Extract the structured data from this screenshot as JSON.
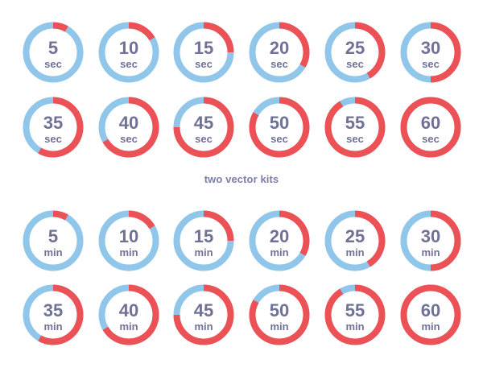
{
  "caption": "two vector kits",
  "colors": {
    "track": "#8fc6ea",
    "progress": "#ec5156",
    "face": "#ffffff",
    "text": "#6f7196"
  },
  "kits": [
    {
      "unit": "sec",
      "total": 60,
      "timers": [
        {
          "value": "5"
        },
        {
          "value": "10"
        },
        {
          "value": "15"
        },
        {
          "value": "20"
        },
        {
          "value": "25"
        },
        {
          "value": "30"
        },
        {
          "value": "35"
        },
        {
          "value": "40"
        },
        {
          "value": "45"
        },
        {
          "value": "50"
        },
        {
          "value": "55"
        },
        {
          "value": "60"
        }
      ]
    },
    {
      "unit": "min",
      "total": 60,
      "timers": [
        {
          "value": "5"
        },
        {
          "value": "10"
        },
        {
          "value": "15"
        },
        {
          "value": "20"
        },
        {
          "value": "25"
        },
        {
          "value": "30"
        },
        {
          "value": "35"
        },
        {
          "value": "40"
        },
        {
          "value": "45"
        },
        {
          "value": "50"
        },
        {
          "value": "55"
        },
        {
          "value": "60"
        }
      ]
    }
  ]
}
